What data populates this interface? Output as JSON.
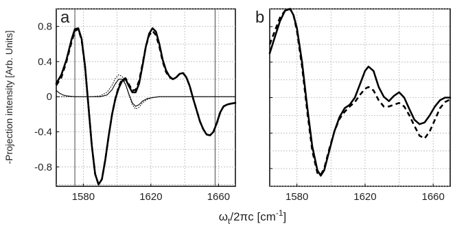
{
  "chart_data": [
    {
      "panel_label": "a",
      "type": "line",
      "xlim": [
        1564,
        1670
      ],
      "ylim": [
        -1.02,
        1.0
      ],
      "xticks": [
        1580,
        1620,
        1660
      ],
      "yticks": [
        0.8,
        0.4,
        0,
        -0.4,
        -0.8
      ],
      "ytick_labels": [
        "0.8",
        "0.4",
        "0",
        "-0.4",
        "-0.8"
      ],
      "grid": true,
      "vlines": [
        1575,
        1658
      ],
      "series": [
        {
          "style": "solid-thick",
          "x": [
            1564,
            1567,
            1570,
            1573,
            1575,
            1577,
            1579,
            1581,
            1583,
            1585,
            1587,
            1589,
            1591,
            1593,
            1595,
            1597,
            1599,
            1601,
            1603,
            1605,
            1607,
            1609,
            1611,
            1613,
            1615,
            1617,
            1619,
            1621,
            1623,
            1625,
            1627,
            1629,
            1631,
            1633,
            1635,
            1637,
            1639,
            1641,
            1643,
            1645,
            1647,
            1649,
            1651,
            1653,
            1655,
            1657,
            1659,
            1661,
            1663,
            1665,
            1667,
            1670
          ],
          "y": [
            0.15,
            0.25,
            0.42,
            0.65,
            0.77,
            0.78,
            0.66,
            0.35,
            -0.1,
            -0.55,
            -0.88,
            -1.0,
            -0.94,
            -0.72,
            -0.45,
            -0.2,
            -0.02,
            0.1,
            0.18,
            0.2,
            0.12,
            0.05,
            0.05,
            0.15,
            0.35,
            0.57,
            0.72,
            0.78,
            0.74,
            0.6,
            0.42,
            0.3,
            0.23,
            0.2,
            0.22,
            0.26,
            0.27,
            0.22,
            0.12,
            -0.02,
            -0.15,
            -0.28,
            -0.37,
            -0.43,
            -0.44,
            -0.4,
            -0.3,
            -0.18,
            -0.11,
            -0.09,
            -0.08,
            -0.07
          ]
        },
        {
          "style": "dashed-thick",
          "x": [
            1564,
            1567,
            1570,
            1573,
            1575,
            1577,
            1579,
            1581,
            1583,
            1585,
            1587,
            1589,
            1591,
            1593,
            1595,
            1597,
            1599,
            1601,
            1603,
            1605,
            1607,
            1609,
            1611,
            1613,
            1615,
            1617,
            1619,
            1621,
            1623,
            1625,
            1627,
            1629,
            1631,
            1633,
            1635,
            1637,
            1639,
            1641,
            1643,
            1645,
            1647,
            1649,
            1651,
            1653,
            1655,
            1657,
            1659,
            1661,
            1663,
            1665,
            1667,
            1670
          ],
          "y": [
            0.13,
            0.22,
            0.4,
            0.62,
            0.75,
            0.77,
            0.65,
            0.34,
            -0.1,
            -0.55,
            -0.88,
            -1.0,
            -0.94,
            -0.72,
            -0.45,
            -0.2,
            -0.02,
            0.12,
            0.2,
            0.21,
            0.14,
            0.07,
            0.08,
            0.18,
            0.37,
            0.57,
            0.7,
            0.75,
            0.7,
            0.57,
            0.4,
            0.28,
            0.22,
            0.2,
            0.22,
            0.26,
            0.27,
            0.22,
            0.12,
            -0.02,
            -0.15,
            -0.28,
            -0.37,
            -0.43,
            -0.44,
            -0.4,
            -0.3,
            -0.18,
            -0.11,
            -0.09,
            -0.08,
            -0.07
          ]
        },
        {
          "style": "solid-thin",
          "x": [
            1564,
            1566,
            1568,
            1570,
            1575,
            1580,
            1585,
            1590,
            1594,
            1597,
            1599,
            1601,
            1603,
            1605,
            1607,
            1609,
            1611,
            1613,
            1615,
            1618,
            1621,
            1625,
            1630,
            1640,
            1650,
            1660,
            1670
          ],
          "y": [
            0.07,
            0.04,
            0.02,
            0.01,
            0.0,
            0.0,
            0.0,
            0.0,
            0.02,
            0.08,
            0.15,
            0.2,
            0.2,
            0.14,
            0.03,
            -0.07,
            -0.11,
            -0.09,
            -0.05,
            -0.02,
            -0.01,
            0.0,
            0.0,
            0.0,
            0.0,
            0.0,
            0.0
          ]
        },
        {
          "style": "dotted-thin",
          "x": [
            1564,
            1570,
            1575,
            1580,
            1585,
            1590,
            1594,
            1597,
            1599,
            1601,
            1603,
            1605,
            1607,
            1609,
            1611,
            1613,
            1615,
            1618,
            1621,
            1625,
            1630,
            1640,
            1650,
            1660,
            1670
          ],
          "y": [
            0.0,
            0.0,
            0.0,
            0.0,
            0.0,
            0.01,
            0.05,
            0.13,
            0.21,
            0.25,
            0.23,
            0.14,
            0.02,
            -0.09,
            -0.14,
            -0.12,
            -0.07,
            -0.03,
            -0.01,
            0.0,
            0.0,
            0.0,
            0.0,
            0.0,
            0.0
          ]
        }
      ]
    },
    {
      "panel_label": "b",
      "type": "line",
      "xlim": [
        1564,
        1670
      ],
      "ylim": [
        -1.0,
        1.0
      ],
      "xticks": [
        1580,
        1620,
        1660
      ],
      "yticks": [
        0.8,
        0.4,
        0,
        -0.4,
        -0.8
      ],
      "grid": true,
      "series": [
        {
          "style": "solid-thick",
          "x": [
            1564,
            1567,
            1570,
            1573,
            1576,
            1578,
            1580,
            1583,
            1586,
            1589,
            1592,
            1594,
            1596,
            1599,
            1602,
            1605,
            1608,
            1611,
            1614,
            1617,
            1620,
            1622,
            1625,
            1628,
            1631,
            1634,
            1637,
            1640,
            1643,
            1646,
            1649,
            1652,
            1655,
            1658,
            1661,
            1664,
            1667,
            1670
          ],
          "y": [
            0.5,
            0.68,
            0.86,
            0.98,
            1.0,
            0.93,
            0.78,
            0.4,
            -0.1,
            -0.55,
            -0.82,
            -0.88,
            -0.82,
            -0.6,
            -0.38,
            -0.22,
            -0.12,
            -0.08,
            0.0,
            0.15,
            0.3,
            0.35,
            0.3,
            0.12,
            0.01,
            -0.04,
            0.02,
            0.06,
            0.0,
            -0.13,
            -0.25,
            -0.3,
            -0.28,
            -0.2,
            -0.1,
            -0.03,
            0.0,
            0.0
          ]
        },
        {
          "style": "dashed-thick",
          "x": [
            1564,
            1567,
            1570,
            1573,
            1576,
            1578,
            1580,
            1583,
            1586,
            1589,
            1592,
            1594,
            1596,
            1599,
            1602,
            1605,
            1608,
            1611,
            1614,
            1617,
            1620,
            1622,
            1625,
            1628,
            1631,
            1634,
            1637,
            1640,
            1643,
            1646,
            1649,
            1652,
            1655,
            1658,
            1661,
            1664,
            1667,
            1670
          ],
          "y": [
            0.6,
            0.75,
            0.9,
            0.98,
            1.0,
            0.93,
            0.75,
            0.35,
            -0.15,
            -0.6,
            -0.85,
            -0.87,
            -0.8,
            -0.58,
            -0.38,
            -0.24,
            -0.16,
            -0.1,
            -0.05,
            0.03,
            0.1,
            0.12,
            0.08,
            -0.03,
            -0.1,
            -0.1,
            -0.08,
            -0.06,
            -0.1,
            -0.2,
            -0.32,
            -0.43,
            -0.46,
            -0.38,
            -0.25,
            -0.12,
            -0.05,
            -0.02
          ]
        }
      ]
    }
  ],
  "ylabel": "-Projection intensity [Arb. Units]",
  "xlabel_main": "ω",
  "xlabel_sub": "t",
  "xlabel_rest": "/2πc [cm",
  "xlabel_sup": "-1",
  "xlabel_end": "]"
}
